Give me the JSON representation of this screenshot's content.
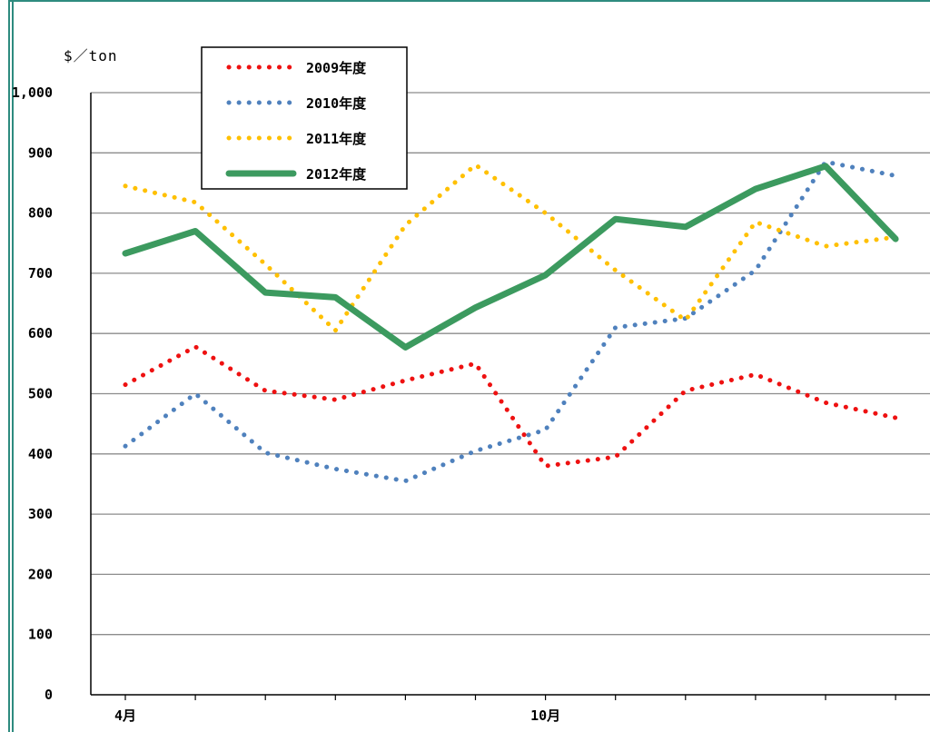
{
  "chart_data": {
    "type": "line",
    "unit_label": "$／ton",
    "ylim": [
      0,
      1000
    ],
    "yticks": [
      "0",
      "100",
      "200",
      "300",
      "400",
      "500",
      "600",
      "700",
      "800",
      "900",
      "1,000"
    ],
    "grid": true,
    "legend_position": "top-left",
    "x": [
      "4月",
      "",
      "",
      "",
      "",
      "",
      "10月",
      "",
      "",
      "",
      "",
      ""
    ],
    "series": [
      {
        "name": "2009年度",
        "color": "#ee1111",
        "style": "dotted",
        "values": [
          515,
          578,
          505,
          490,
          522,
          550,
          380,
          395,
          505,
          532,
          485,
          460
        ]
      },
      {
        "name": "2010年度",
        "color": "#4f81bd",
        "style": "dotted",
        "values": [
          413,
          500,
          402,
          375,
          355,
          405,
          440,
          610,
          625,
          705,
          885,
          862
        ]
      },
      {
        "name": "2011年度",
        "color": "#ffc000",
        "style": "dotted",
        "values": [
          845,
          818,
          715,
          605,
          780,
          880,
          800,
          705,
          622,
          785,
          745,
          760
        ]
      },
      {
        "name": "2012年度",
        "color": "#3c9a5f",
        "style": "solid",
        "values": [
          733,
          770,
          668,
          660,
          577,
          643,
          697,
          790,
          777,
          840,
          878,
          757
        ]
      }
    ]
  }
}
